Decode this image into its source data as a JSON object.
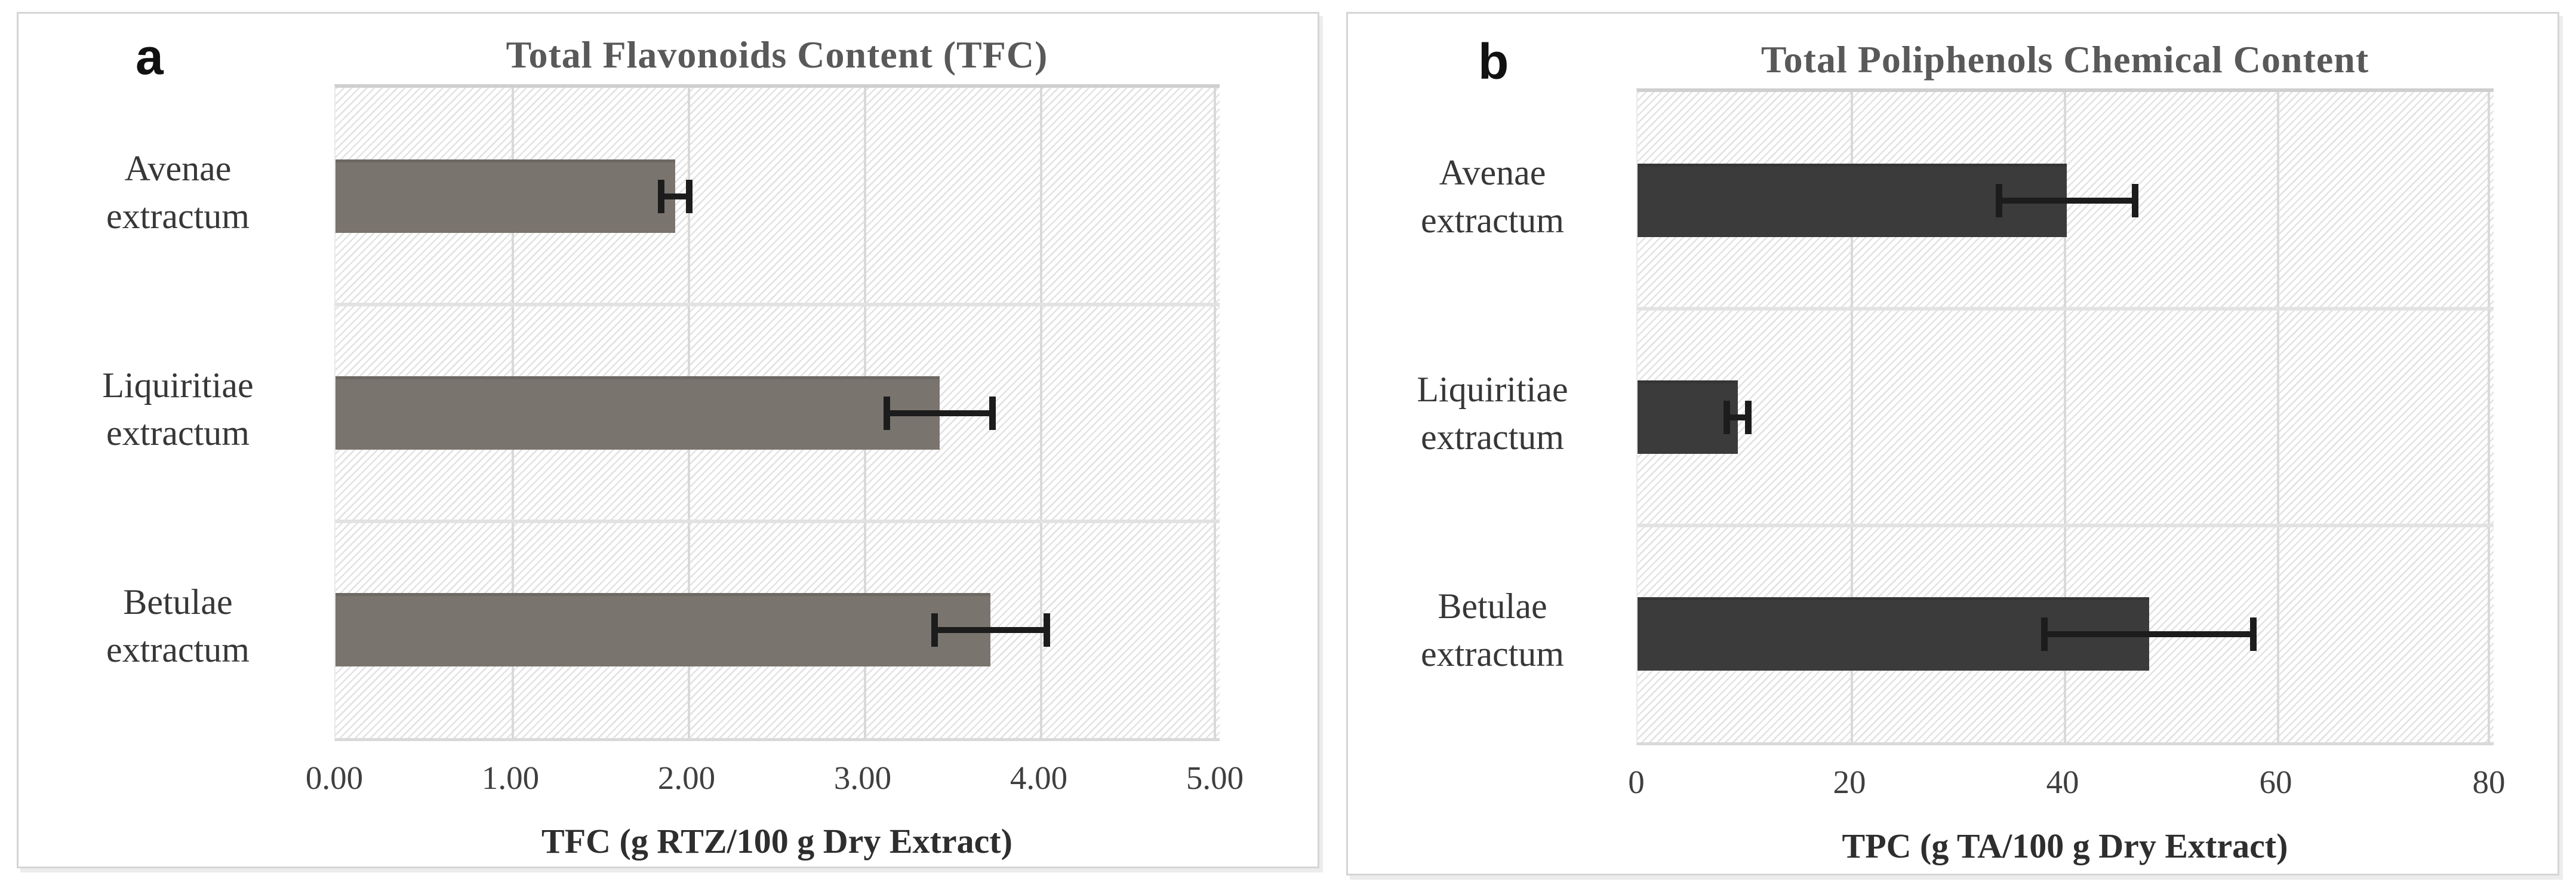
{
  "chart_data": [
    {
      "panel": "a",
      "type": "bar",
      "orientation": "horizontal",
      "title": "Total Flavonoids Content (TFC)",
      "categories": [
        "Avenae extractum",
        "Liquiritiae extractum",
        "Betulae extractum"
      ],
      "values": [
        1.93,
        3.43,
        3.72
      ],
      "errors": [
        0.08,
        0.3,
        0.32
      ],
      "xlabel": "TFC (g RTZ/100 g Dry Extract)",
      "xlim": [
        0,
        5
      ],
      "xticks": [
        0,
        1,
        2,
        3,
        4,
        5
      ],
      "xtick_labels": [
        "0.00",
        "1.00",
        "2.00",
        "3.00",
        "4.00",
        "5.00"
      ],
      "bar_color": "#7a746e",
      "error_color": "#1c1c1c",
      "grid": true,
      "legend": false,
      "plot_background": "light diagonal hatch on white"
    },
    {
      "panel": "b",
      "type": "bar",
      "orientation": "horizontal",
      "title": "Total Poliphenols Chemical Content",
      "categories": [
        "Avenae extractum",
        "Liquiritiae extractum",
        "Betulae extractum"
      ],
      "values": [
        40.3,
        9.4,
        48.0
      ],
      "errors": [
        6.4,
        1.0,
        9.8
      ],
      "xlabel": "TPC (g TA/100 g Dry Extract)",
      "xlim": [
        0,
        80
      ],
      "xticks": [
        0,
        20,
        40,
        60,
        80
      ],
      "xtick_labels": [
        "0",
        "20",
        "40",
        "60",
        "80"
      ],
      "bar_color": "#3b3b3b",
      "error_color": "#1c1c1c",
      "grid": true,
      "legend": false,
      "plot_background": "light diagonal hatch on white"
    }
  ],
  "colors": {
    "panel_border": "#d5d5d5",
    "gridline": "#d9d9d9",
    "band_line": "#e2e2e2",
    "title_text": "#595959",
    "tick_text": "#3f3f3f",
    "category_text": "#373737",
    "axis_label_text": "#2e2e2e"
  }
}
